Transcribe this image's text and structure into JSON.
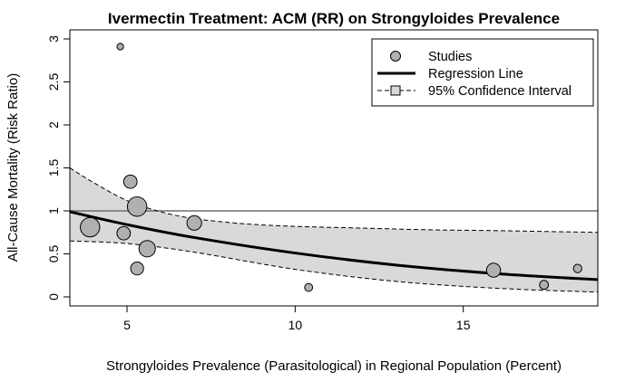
{
  "chart_data": {
    "type": "scatter",
    "title": "Ivermectin Treatment: ACM (RR) on Strongyloides Prevalence",
    "xlabel": "Strongyloides Prevalence (Parasitological) in Regional Population (Percent)",
    "ylabel": "All-Cause Mortality (Risk Ratio)",
    "xlim": [
      3.3,
      19.0
    ],
    "ylim": [
      0,
      3
    ],
    "x_ticks": [
      5,
      10,
      15
    ],
    "y_ticks": [
      0,
      0.5,
      1,
      1.5,
      2,
      2.5,
      3
    ],
    "reference_line": 1,
    "legend": {
      "position": "top-right",
      "items": [
        "Studies",
        "Regression Line",
        "95% Confidence Interval"
      ]
    },
    "studies": [
      {
        "x": 4.8,
        "y": 2.91,
        "weight": 1.2
      },
      {
        "x": 3.9,
        "y": 0.81,
        "weight": 10.5
      },
      {
        "x": 4.9,
        "y": 0.74,
        "weight": 5.0
      },
      {
        "x": 5.1,
        "y": 1.34,
        "weight": 5.0
      },
      {
        "x": 5.3,
        "y": 1.05,
        "weight": 10.5
      },
      {
        "x": 5.6,
        "y": 0.56,
        "weight": 7.5
      },
      {
        "x": 5.3,
        "y": 0.33,
        "weight": 4.7
      },
      {
        "x": 7.0,
        "y": 0.86,
        "weight": 6.0
      },
      {
        "x": 10.4,
        "y": 0.11,
        "weight": 1.8
      },
      {
        "x": 15.9,
        "y": 0.31,
        "weight": 5.5
      },
      {
        "x": 17.4,
        "y": 0.14,
        "weight": 2.2
      },
      {
        "x": 18.4,
        "y": 0.33,
        "weight": 2.0
      }
    ],
    "regression": {
      "x": [
        3.3,
        5,
        7,
        10,
        13,
        16,
        19
      ],
      "y": [
        0.99,
        0.84,
        0.69,
        0.51,
        0.37,
        0.27,
        0.2
      ]
    },
    "ci_upper": {
      "x": [
        3.3,
        4,
        5,
        6,
        7,
        8.5,
        10,
        12,
        14,
        16,
        19
      ],
      "y": [
        1.5,
        1.33,
        1.12,
        0.99,
        0.91,
        0.85,
        0.82,
        0.8,
        0.78,
        0.77,
        0.75
      ]
    },
    "ci_lower": {
      "x": [
        3.3,
        5,
        7,
        10,
        13,
        16,
        19
      ],
      "y": [
        0.65,
        0.62,
        0.52,
        0.32,
        0.18,
        0.1,
        0.055
      ]
    }
  }
}
